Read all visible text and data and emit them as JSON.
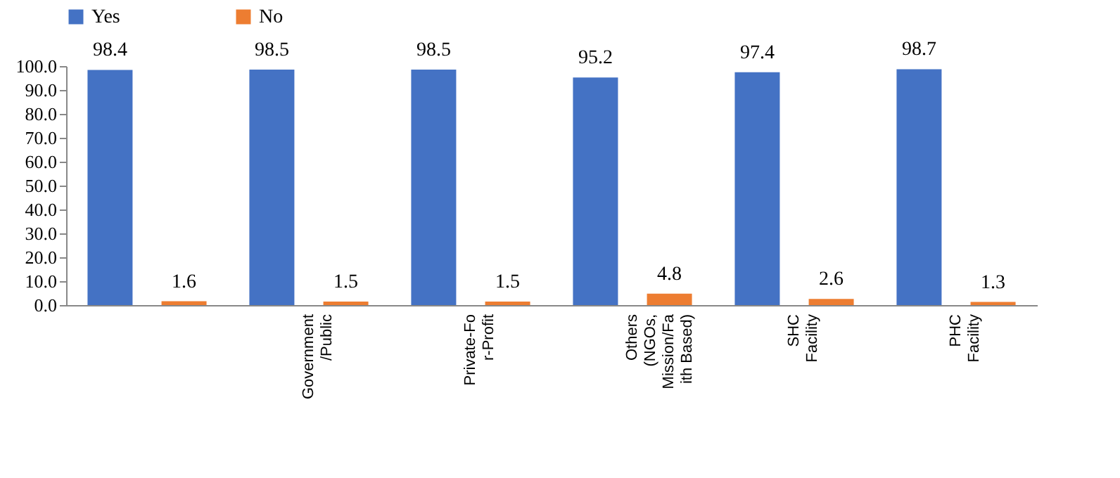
{
  "chart_data": {
    "type": "bar",
    "categories": [
      null,
      "Government/Public",
      "Private-For-Profit",
      "Others (NGOs, Mission/Faith Based)",
      "SHC Facility",
      "PHC Facility"
    ],
    "series": [
      {
        "name": "Yes",
        "color": "#4472c4",
        "values": [
          98.4,
          98.5,
          98.5,
          95.2,
          97.4,
          98.7
        ]
      },
      {
        "name": "No",
        "color": "#ed7d31",
        "values": [
          1.6,
          1.5,
          1.5,
          4.8,
          2.6,
          1.3
        ]
      }
    ],
    "ylim": [
      0,
      100
    ],
    "yticks": [
      {
        "value": 0,
        "label": "0.0"
      },
      {
        "value": 10,
        "label": "10.0"
      },
      {
        "value": 20,
        "label": "20.0"
      },
      {
        "value": 30,
        "label": "30.0"
      },
      {
        "value": 40,
        "label": "40.0"
      },
      {
        "value": 50,
        "label": "50.0"
      },
      {
        "value": 60,
        "label": "60.0"
      },
      {
        "value": 70,
        "label": "70.0"
      },
      {
        "value": 80,
        "label": "80.0"
      },
      {
        "value": 90,
        "label": "90.0"
      },
      {
        "value": 100,
        "label": "100.0"
      }
    ],
    "data_labels": true,
    "legend": "top",
    "grid": false
  }
}
